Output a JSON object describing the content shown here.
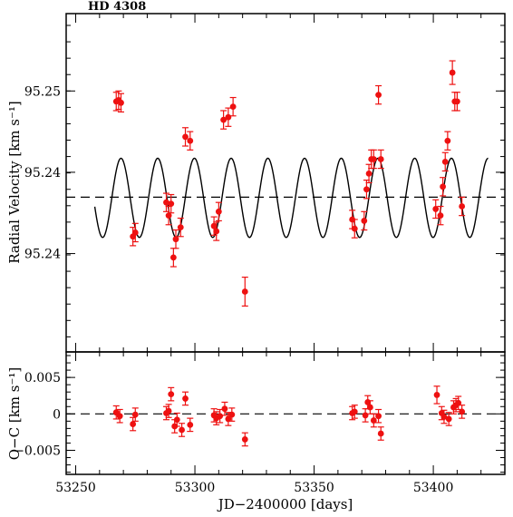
{
  "chart_data": [
    {
      "type": "scatter",
      "title": "HD 4308",
      "xlabel": "",
      "ylabel": "Radial Velocity [km s⁻¹]",
      "xlim": [
        53246,
        53430
      ],
      "ylim": [
        95.2301,
        95.2559
      ],
      "y_tick_values": [
        95.2376,
        95.2438,
        95.25
      ],
      "y_tick_labels": [
        "95.24",
        "95.24",
        "95.25"
      ],
      "x_tick_values": [
        53250,
        53300,
        53350,
        53400
      ],
      "reference_line_y": 95.2419,
      "model_curve": {
        "x_range": [
          53258,
          53423
        ],
        "mean": 95.24185,
        "amplitude": 0.00302,
        "period_days": 15.4,
        "phase_reference_jd": 53269.0
      },
      "series": [
        {
          "color": "#ee1111",
          "points": [
            {
              "x": 53267.0,
              "y": 95.2492,
              "err": 0.0007
            },
            {
              "x": 53268.0,
              "y": 95.2493,
              "err": 0.0007
            },
            {
              "x": 53269.0,
              "y": 95.2491,
              "err": 0.0007
            },
            {
              "x": 53274.0,
              "y": 95.2389,
              "err": 0.0007
            },
            {
              "x": 53275.0,
              "y": 95.2392,
              "err": 0.0007
            },
            {
              "x": 53288.0,
              "y": 95.2415,
              "err": 0.0007
            },
            {
              "x": 53289.0,
              "y": 95.2405,
              "err": 0.0007
            },
            {
              "x": 53290.0,
              "y": 95.2414,
              "err": 0.0007
            },
            {
              "x": 53291.0,
              "y": 95.2373,
              "err": 0.0007
            },
            {
              "x": 53292.0,
              "y": 95.2387,
              "err": 0.0007
            },
            {
              "x": 53294.0,
              "y": 95.2396,
              "err": 0.0007
            },
            {
              "x": 53296.0,
              "y": 95.2465,
              "err": 0.0007
            },
            {
              "x": 53298.0,
              "y": 95.2462,
              "err": 0.0007
            },
            {
              "x": 53308.0,
              "y": 95.2397,
              "err": 0.0007
            },
            {
              "x": 53309.0,
              "y": 95.2393,
              "err": 0.0007
            },
            {
              "x": 53310.0,
              "y": 95.2408,
              "err": 0.0007
            },
            {
              "x": 53312.0,
              "y": 95.2478,
              "err": 0.0007
            },
            {
              "x": 53314.0,
              "y": 95.248,
              "err": 0.0007
            },
            {
              "x": 53316.0,
              "y": 95.2488,
              "err": 0.0007
            },
            {
              "x": 53321.0,
              "y": 95.2347,
              "err": 0.0011
            },
            {
              "x": 53366.0,
              "y": 95.2402,
              "err": 0.0007
            },
            {
              "x": 53367.0,
              "y": 95.2395,
              "err": 0.0007
            },
            {
              "x": 53371.0,
              "y": 95.2401,
              "err": 0.0007
            },
            {
              "x": 53372.0,
              "y": 95.2425,
              "err": 0.0007
            },
            {
              "x": 53373.0,
              "y": 95.2437,
              "err": 0.0007
            },
            {
              "x": 53374.0,
              "y": 95.2448,
              "err": 0.0007
            },
            {
              "x": 53375.0,
              "y": 95.2448,
              "err": 0.0007
            },
            {
              "x": 53377.0,
              "y": 95.2497,
              "err": 0.0007
            },
            {
              "x": 53378.0,
              "y": 95.2448,
              "err": 0.0007
            },
            {
              "x": 53401.0,
              "y": 95.241,
              "err": 0.0007
            },
            {
              "x": 53403.0,
              "y": 95.2405,
              "err": 0.0007
            },
            {
              "x": 53404.0,
              "y": 95.2427,
              "err": 0.0007
            },
            {
              "x": 53405.0,
              "y": 95.2446,
              "err": 0.0007
            },
            {
              "x": 53406.0,
              "y": 95.2462,
              "err": 0.0007
            },
            {
              "x": 53408.0,
              "y": 95.2514,
              "err": 0.0009
            },
            {
              "x": 53409.0,
              "y": 95.2492,
              "err": 0.0007
            },
            {
              "x": 53410.0,
              "y": 95.2492,
              "err": 0.0007
            },
            {
              "x": 53412.0,
              "y": 95.2412,
              "err": 0.0007
            }
          ]
        }
      ]
    },
    {
      "type": "scatter",
      "title": "",
      "xlabel": "JD−2400000 [days]",
      "ylabel": "O−C [km s⁻¹]",
      "xlim": [
        53246,
        53430
      ],
      "ylim": [
        -0.0083,
        0.0085
      ],
      "y_tick_values": [
        0.005,
        0,
        -0.005
      ],
      "y_tick_labels": [
        "0.005",
        "0",
        "−0.005"
      ],
      "x_tick_values": [
        53250,
        53300,
        53350,
        53400
      ],
      "x_tick_labels": [
        "53250",
        "53300",
        "53350",
        "53400"
      ],
      "reference_line_y": 0,
      "series": [
        {
          "color": "#ee1111",
          "points": [
            {
              "x": 53267.0,
              "y": 0.0002,
              "err": 0.0009
            },
            {
              "x": 53268.5,
              "y": -0.0003,
              "err": 0.0009
            },
            {
              "x": 53274.0,
              "y": -0.0014,
              "err": 0.0009
            },
            {
              "x": 53275.0,
              "y": -0.0001,
              "err": 0.0009
            },
            {
              "x": 53288.0,
              "y": 0.0001,
              "err": 0.0009
            },
            {
              "x": 53289.0,
              "y": 0.0004,
              "err": 0.0009
            },
            {
              "x": 53290.0,
              "y": 0.0027,
              "err": 0.0009
            },
            {
              "x": 53291.5,
              "y": -0.0017,
              "err": 0.0009
            },
            {
              "x": 53292.5,
              "y": -0.0008,
              "err": 0.0009
            },
            {
              "x": 53294.5,
              "y": -0.0022,
              "err": 0.0009
            },
            {
              "x": 53296.0,
              "y": 0.0021,
              "err": 0.0009
            },
            {
              "x": 53298.0,
              "y": -0.0015,
              "err": 0.0009
            },
            {
              "x": 53308.0,
              "y": -0.0002,
              "err": 0.0009
            },
            {
              "x": 53309.0,
              "y": -0.0006,
              "err": 0.0009
            },
            {
              "x": 53310.5,
              "y": -0.0003,
              "err": 0.0009
            },
            {
              "x": 53312.5,
              "y": 0.0007,
              "err": 0.0009
            },
            {
              "x": 53314.0,
              "y": -0.0007,
              "err": 0.0009
            },
            {
              "x": 53315.5,
              "y": -0.0001,
              "err": 0.0009
            },
            {
              "x": 53321.0,
              "y": -0.0035,
              "err": 0.0009
            },
            {
              "x": 53366.0,
              "y": 0.0001,
              "err": 0.0009
            },
            {
              "x": 53367.0,
              "y": 0.0003,
              "err": 0.0009
            },
            {
              "x": 53371.5,
              "y": -0.0002,
              "err": 0.0009
            },
            {
              "x": 53372.5,
              "y": 0.0016,
              "err": 0.0009
            },
            {
              "x": 53373.5,
              "y": 0.0009,
              "err": 0.0009
            },
            {
              "x": 53375.0,
              "y": -0.0009,
              "err": 0.0009
            },
            {
              "x": 53377.0,
              "y": -0.0003,
              "err": 0.0009
            },
            {
              "x": 53378.0,
              "y": -0.0027,
              "err": 0.0009
            },
            {
              "x": 53401.5,
              "y": 0.0026,
              "err": 0.0012
            },
            {
              "x": 53403.5,
              "y": 0.0001,
              "err": 0.0009
            },
            {
              "x": 53404.5,
              "y": -0.0004,
              "err": 0.0009
            },
            {
              "x": 53406.5,
              "y": -0.0007,
              "err": 0.0009
            },
            {
              "x": 53408.5,
              "y": 0.0009,
              "err": 0.0009
            },
            {
              "x": 53409.5,
              "y": 0.0012,
              "err": 0.0009
            },
            {
              "x": 53410.5,
              "y": 0.0015,
              "err": 0.0009
            },
            {
              "x": 53412.0,
              "y": 0.0003,
              "err": 0.0009
            }
          ]
        }
      ]
    }
  ]
}
